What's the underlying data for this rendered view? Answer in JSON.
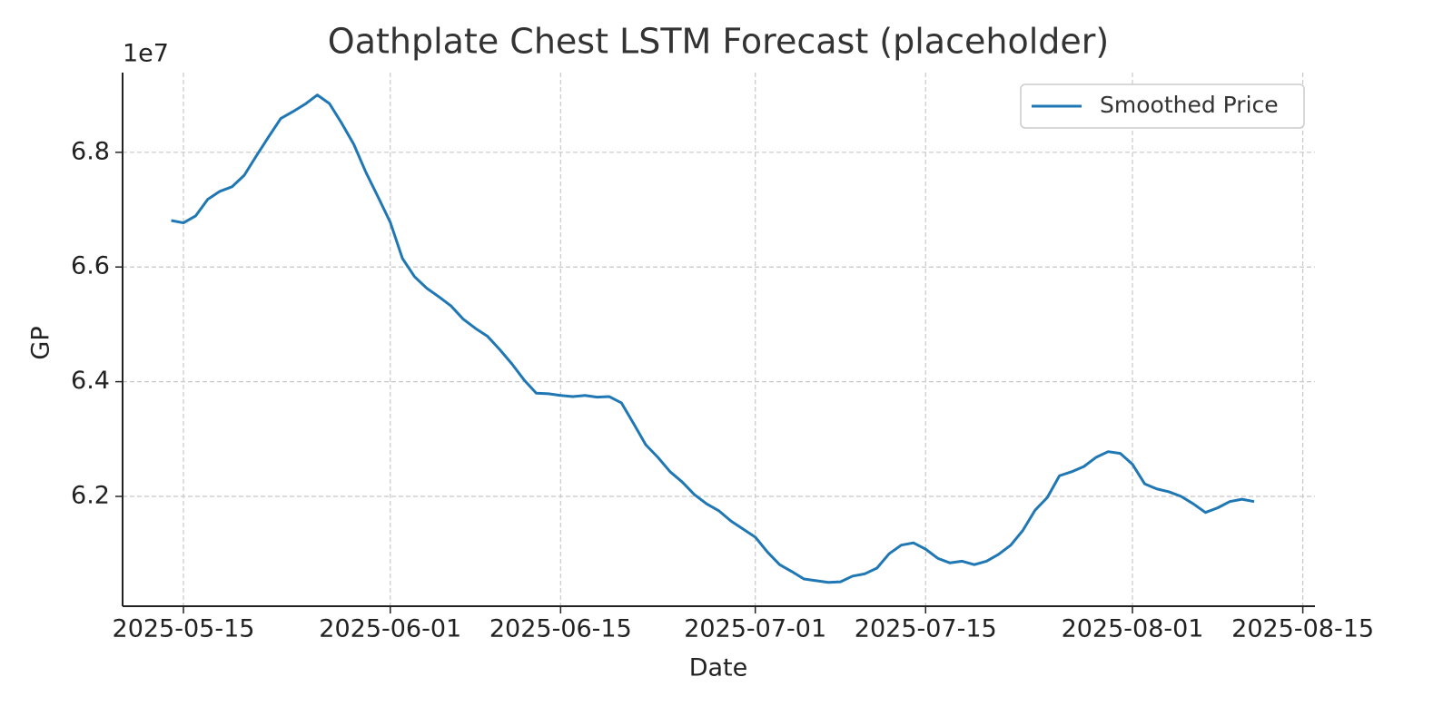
{
  "chart_data": {
    "type": "line",
    "title": "Oathplate Chest LSTM Forecast (placeholder)",
    "x_label": "Date",
    "y_label": "GP",
    "y_offset_label": "1e7",
    "x": [
      "2025-05-14",
      "2025-05-15",
      "2025-05-16",
      "2025-05-17",
      "2025-05-18",
      "2025-05-19",
      "2025-05-20",
      "2025-05-21",
      "2025-05-22",
      "2025-05-23",
      "2025-05-24",
      "2025-05-25",
      "2025-05-26",
      "2025-05-27",
      "2025-05-28",
      "2025-05-29",
      "2025-05-30",
      "2025-05-31",
      "2025-06-01",
      "2025-06-02",
      "2025-06-03",
      "2025-06-04",
      "2025-06-05",
      "2025-06-06",
      "2025-06-07",
      "2025-06-08",
      "2025-06-09",
      "2025-06-10",
      "2025-06-11",
      "2025-06-12",
      "2025-06-13",
      "2025-06-14",
      "2025-06-15",
      "2025-06-16",
      "2025-06-17",
      "2025-06-18",
      "2025-06-19",
      "2025-06-20",
      "2025-06-21",
      "2025-06-22",
      "2025-06-23",
      "2025-06-24",
      "2025-06-25",
      "2025-06-26",
      "2025-06-27",
      "2025-06-28",
      "2025-06-29",
      "2025-06-30",
      "2025-07-01",
      "2025-07-02",
      "2025-07-03",
      "2025-07-04",
      "2025-07-05",
      "2025-07-06",
      "2025-07-07",
      "2025-07-08",
      "2025-07-09",
      "2025-07-10",
      "2025-07-11",
      "2025-07-12",
      "2025-07-13",
      "2025-07-14",
      "2025-07-15",
      "2025-07-16",
      "2025-07-17",
      "2025-07-18",
      "2025-07-19",
      "2025-07-20",
      "2025-07-21",
      "2025-07-22",
      "2025-07-23",
      "2025-07-24",
      "2025-07-25",
      "2025-07-26",
      "2025-07-27",
      "2025-07-28",
      "2025-07-29",
      "2025-07-30",
      "2025-07-31",
      "2025-08-01",
      "2025-08-02",
      "2025-08-03",
      "2025-08-04",
      "2025-08-05",
      "2025-08-06",
      "2025-08-07",
      "2025-08-08",
      "2025-08-09",
      "2025-08-10",
      "2025-08-11"
    ],
    "series": [
      {
        "name": "Smoothed Price",
        "color": "#1f77b4",
        "values": [
          6.681,
          6.677,
          6.689,
          6.718,
          6.732,
          6.74,
          6.76,
          6.794,
          6.827,
          6.859,
          6.871,
          6.884,
          6.9,
          6.885,
          6.851,
          6.814,
          6.765,
          6.722,
          6.678,
          6.615,
          6.583,
          6.563,
          6.548,
          6.532,
          6.509,
          6.493,
          6.479,
          6.456,
          6.431,
          6.403,
          6.38,
          6.379,
          6.376,
          6.374,
          6.376,
          6.373,
          6.374,
          6.363,
          6.327,
          6.29,
          6.268,
          6.243,
          6.225,
          6.203,
          6.187,
          6.175,
          6.157,
          6.143,
          6.129,
          6.103,
          6.081,
          6.069,
          6.056,
          6.053,
          6.05,
          6.051,
          6.061,
          6.065,
          6.075,
          6.1,
          6.115,
          6.119,
          6.108,
          6.092,
          6.084,
          6.087,
          6.081,
          6.087,
          6.099,
          6.115,
          6.141,
          6.176,
          6.198,
          6.236,
          6.243,
          6.252,
          6.268,
          6.278,
          6.275,
          6.256,
          6.222,
          6.213,
          6.208,
          6.2,
          6.187,
          6.172,
          6.18,
          6.191,
          6.195,
          6.191
        ]
      }
    ],
    "xlim": [
      "2025-05-10",
      "2025-08-16"
    ],
    "xticks": [
      "2025-05-15",
      "2025-06-01",
      "2025-06-15",
      "2025-07-01",
      "2025-07-15",
      "2025-08-01",
      "2025-08-15"
    ],
    "ylim": [
      6.0085,
      6.939
    ],
    "yticks": [
      6.2,
      6.4,
      6.6,
      6.8
    ],
    "grid": true,
    "legend": "upper right"
  }
}
